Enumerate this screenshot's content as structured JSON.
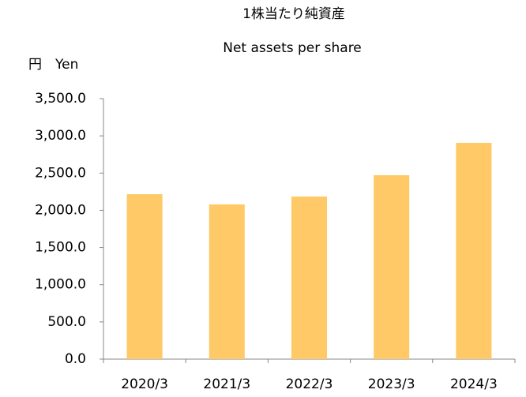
{
  "chart_data": {
    "type": "bar",
    "title": "1株当たり純資産",
    "subtitle": "Net assets per share",
    "y_label": "円　Yen",
    "categories": [
      "2020/3",
      "2021/3",
      "2022/3",
      "2023/3",
      "2024/3"
    ],
    "values": [
      2216,
      2079,
      2185,
      2471,
      2906
    ],
    "color": "#fec966",
    "ylim": [
      0,
      3500
    ],
    "yticks": [
      {
        "value": 0,
        "label": "0.0"
      },
      {
        "value": 500,
        "label": "500.0"
      },
      {
        "value": 1000,
        "label": "1,000.0"
      },
      {
        "value": 1500,
        "label": "1,500.0"
      },
      {
        "value": 2000,
        "label": "2,000.0"
      },
      {
        "value": 2500,
        "label": "2,500.0"
      },
      {
        "value": 3000,
        "label": "3,000.0"
      },
      {
        "value": 3500,
        "label": "3,500.0"
      }
    ],
    "grid": false
  }
}
